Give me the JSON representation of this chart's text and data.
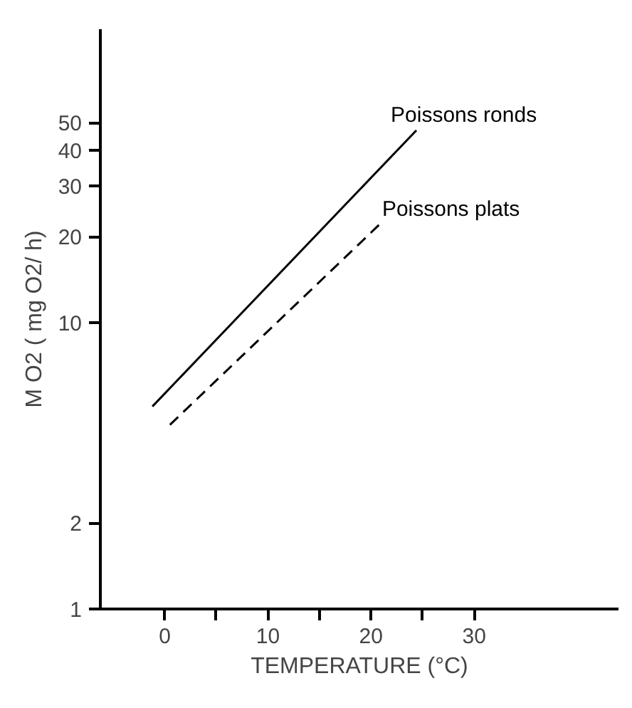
{
  "chart_data": {
    "type": "line",
    "xlabel": "TEMPERATURE (°C)",
    "ylabel": "M O2 ( mg O2/ h)",
    "log": "y",
    "xlim": [
      -6.25,
      44
    ],
    "ylim": [
      1,
      106
    ],
    "xticks": [
      0,
      {
        "value": 5,
        "label": null
      },
      10,
      {
        "value": 15,
        "label": null
      },
      20,
      {
        "value": 25,
        "label": null
      },
      30
    ],
    "yticks": [
      1,
      2,
      10,
      20,
      30,
      40,
      50
    ],
    "legend": false,
    "series": [
      {
        "name": "Poissons ronds",
        "color": "#000000",
        "line_style": "solid",
        "x": [
          -1.2,
          24.4
        ],
        "values": [
          5.1,
          47
        ]
      },
      {
        "name": "Poissons plats",
        "color": "#000000",
        "line_style": "dashed",
        "x": [
          0.5,
          20.8
        ],
        "values": [
          4.4,
          22
        ]
      }
    ]
  }
}
